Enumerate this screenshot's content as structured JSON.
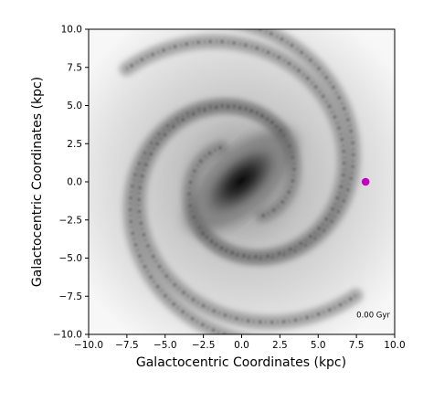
{
  "chart_data": {
    "type": "scatter",
    "title": "",
    "xlabel": "Galactocentric Coordinates (kpc)",
    "ylabel": "Galactocentric Coordinates (kpc)",
    "xlim": [
      -10.0,
      10.0
    ],
    "ylim": [
      -10.0,
      10.0
    ],
    "x_ticks": [
      -10.0,
      -7.5,
      -5.0,
      -2.5,
      0.0,
      2.5,
      5.0,
      7.5,
      10.0
    ],
    "y_ticks": [
      -10.0,
      -7.5,
      -5.0,
      -2.5,
      0.0,
      2.5,
      5.0,
      7.5,
      10.0
    ],
    "x_tick_labels": [
      "−10.0",
      "−7.5",
      "−5.0",
      "−2.5",
      "0.0",
      "2.5",
      "5.0",
      "7.5",
      "10.0"
    ],
    "y_tick_labels": [
      "−10.0",
      "−7.5",
      "−5.0",
      "−2.5",
      "0.0",
      "2.5",
      "5.0",
      "7.5",
      "10.0"
    ],
    "grid": false,
    "background": "grayscale rendering of a barred spiral galaxy (face-on Milky Way)",
    "points": [
      {
        "x": 8.1,
        "y": 0.0,
        "color": "#c000c0"
      }
    ],
    "annotations": [
      {
        "text": "0.00 Gyr",
        "x": 8.6,
        "y": -8.9
      }
    ]
  }
}
